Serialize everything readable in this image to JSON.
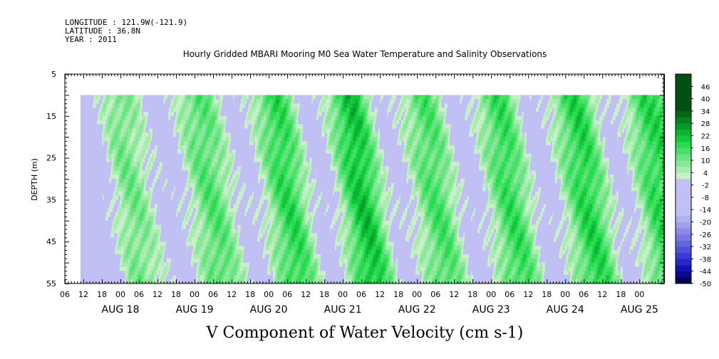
{
  "header": {
    "longitude": "LONGITUDE : 121.9W(-121.9)",
    "latitude": "LATITUDE : 36.8N",
    "year": "YEAR : 2011"
  },
  "chart_data": {
    "type": "heatmap",
    "title": "Hourly Gridded MBARI Mooring M0 Sea Water Temperature and Salinity Observations",
    "xlabel": "V Component of Water Velocity (cm s-1)",
    "ylabel": "DEPTH (m)",
    "x_axis": {
      "start": "2011-08-17T06:00",
      "end": "2011-08-25T08:00",
      "data_start": "2011-08-17T11:00",
      "hour_ticks": [
        "06",
        "12",
        "18",
        "00",
        "06",
        "12",
        "18",
        "00",
        "06",
        "12",
        "18",
        "00",
        "06",
        "12",
        "18",
        "00",
        "06",
        "12",
        "18",
        "00",
        "06",
        "12",
        "18",
        "00",
        "06",
        "12",
        "18",
        "00",
        "06",
        "12",
        "18",
        "00"
      ],
      "date_labels": [
        "AUG 18",
        "AUG 19",
        "AUG 20",
        "AUG 21",
        "AUG 22",
        "AUG 23",
        "AUG 24",
        "AUG 25"
      ]
    },
    "y_axis": {
      "range": [
        5,
        55
      ],
      "inverted": true,
      "data_range": [
        10,
        55
      ],
      "tick_labels": [
        "5",
        "15",
        "25",
        "35",
        "45",
        "55"
      ]
    },
    "colorbar": {
      "labels": [
        "46",
        "40",
        "34",
        "28",
        "22",
        "16",
        "10",
        "4",
        "-2",
        "-8",
        "-14",
        "-20",
        "-26",
        "-32",
        "-38",
        "-44",
        "-50"
      ],
      "levels_from": -50,
      "levels_to": 50,
      "step": 3,
      "negative_colors": [
        "#000055",
        "#0a0a8c",
        "#1414b4",
        "#2828c8",
        "#3c3cd2",
        "#5050dc",
        "#6464e0",
        "#7878e4",
        "#8c8ce8",
        "#a0a0ec",
        "#b0b0f0",
        "#c0c0f4"
      ],
      "positive_colors": [
        "#c8f0c8",
        "#a8ecb0",
        "#88e898",
        "#68e480",
        "#48e068",
        "#28dc50",
        "#14c83c",
        "#0ab432",
        "#009a28",
        "#008220",
        "#006a18",
        "#005010"
      ]
    },
    "pattern": {
      "description_of_values": "alternating slanted bands of positive (green) and negative (lavender) velocity, mostly between -8 and +22 cm/s",
      "band_centers_hours": [
        {
          "t": 6,
          "v": -6
        },
        {
          "t": 17,
          "v": 9
        },
        {
          "t": 30,
          "v": -5
        },
        {
          "t": 43,
          "v": 12
        },
        {
          "t": 55,
          "v": -4
        },
        {
          "t": 68,
          "v": 16
        },
        {
          "t": 79,
          "v": -5
        },
        {
          "t": 92,
          "v": 20
        },
        {
          "t": 103,
          "v": -4
        },
        {
          "t": 116,
          "v": 13
        },
        {
          "t": 127,
          "v": -5
        },
        {
          "t": 140,
          "v": 15
        },
        {
          "t": 151,
          "v": -5
        },
        {
          "t": 165,
          "v": 17
        },
        {
          "t": 176,
          "v": -4
        },
        {
          "t": 188,
          "v": 16
        }
      ]
    }
  }
}
